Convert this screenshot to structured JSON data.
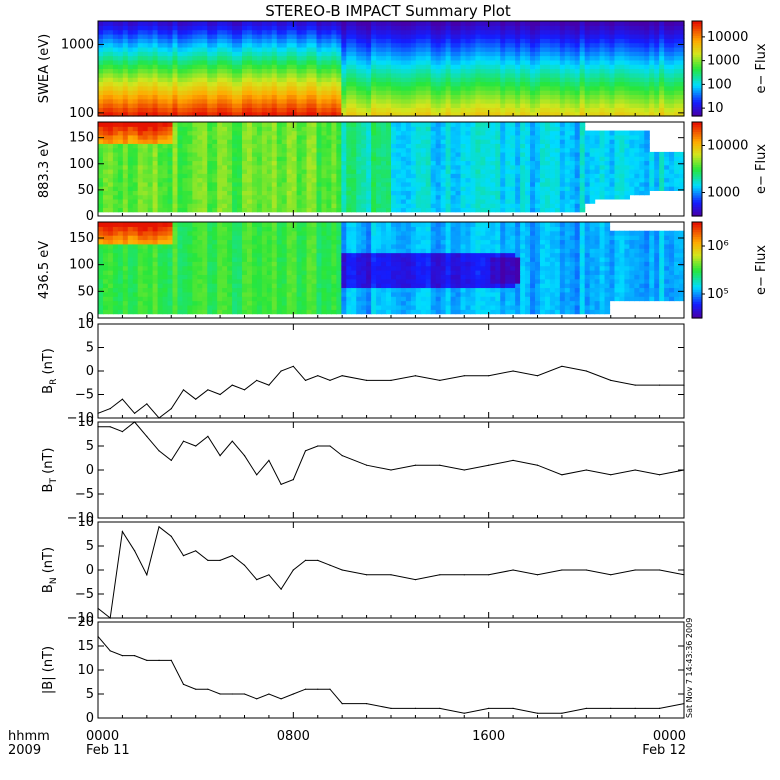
{
  "title": "STEREO-B IMPACT Summary Plot",
  "footer": {
    "left_top": "hhmm",
    "left_bottom": "2009",
    "timestamp": "Sat Nov 7 14:43:36 2009"
  },
  "chart_data": [
    {
      "type": "heatmap",
      "ylabel": "SWEA (eV)",
      "scale": "log",
      "yticks": [
        "100",
        "1000"
      ],
      "colorbar": {
        "label": "e− Flux",
        "ticks": [
          "10",
          "100",
          "1000",
          "10000"
        ]
      }
    },
    {
      "type": "heatmap",
      "ylabel": "883.3 eV",
      "ylim": [
        0,
        180
      ],
      "yticks": [
        "0",
        "50",
        "100",
        "150"
      ],
      "colorbar": {
        "label": "e− Flux",
        "ticks": [
          "1000",
          "10000"
        ]
      }
    },
    {
      "type": "heatmap",
      "ylabel": "436.5 eV",
      "ylim": [
        0,
        180
      ],
      "yticks": [
        "0",
        "50",
        "100",
        "150"
      ],
      "colorbar": {
        "label": "e− Flux",
        "ticks": [
          "10⁵",
          "10⁶"
        ]
      }
    },
    {
      "type": "line",
      "ylabel_main": "B",
      "ylabel_sub": "R",
      "ylabel_unit": " (nT)",
      "ylim": [
        -10,
        10
      ],
      "yticks": [
        "−10",
        "−5",
        "0",
        "5",
        "10"
      ],
      "x": [
        0,
        0.5,
        1,
        1.5,
        2,
        2.5,
        3,
        3.5,
        4,
        4.5,
        5,
        5.5,
        6,
        6.5,
        7,
        7.5,
        8,
        8.5,
        9,
        9.5,
        10,
        11,
        12,
        13,
        14,
        15,
        16,
        17,
        18,
        19,
        20,
        21,
        22,
        23,
        24
      ],
      "y": [
        -9,
        -8,
        -6,
        -9,
        -7,
        -10,
        -8,
        -4,
        -6,
        -4,
        -5,
        -3,
        -4,
        -2,
        -3,
        0,
        1,
        -2,
        -1,
        -2,
        -1,
        -2,
        -2,
        -1,
        -2,
        -1,
        -1,
        0,
        -1,
        1,
        0,
        -2,
        -3,
        -3,
        -3
      ]
    },
    {
      "type": "line",
      "ylabel_main": "B",
      "ylabel_sub": "T",
      "ylabel_unit": " (nT)",
      "ylim": [
        -10,
        10
      ],
      "yticks": [
        "−10",
        "−5",
        "0",
        "5",
        "10"
      ],
      "x": [
        0,
        0.5,
        1,
        1.5,
        2,
        2.5,
        3,
        3.5,
        4,
        4.5,
        5,
        5.5,
        6,
        6.5,
        7,
        7.5,
        8,
        8.5,
        9,
        9.5,
        10,
        11,
        12,
        13,
        14,
        15,
        16,
        17,
        18,
        19,
        20,
        21,
        22,
        23,
        24
      ],
      "y": [
        9,
        9,
        8,
        10,
        7,
        4,
        2,
        6,
        5,
        7,
        3,
        6,
        3,
        -1,
        2,
        -3,
        -2,
        4,
        5,
        5,
        3,
        1,
        0,
        1,
        1,
        0,
        1,
        2,
        1,
        -1,
        0,
        -1,
        0,
        -1,
        0
      ]
    },
    {
      "type": "line",
      "ylabel_main": "B",
      "ylabel_sub": "N",
      "ylabel_unit": " (nT)",
      "ylim": [
        -10,
        10
      ],
      "yticks": [
        "−10",
        "−5",
        "0",
        "5",
        "10"
      ],
      "x": [
        0,
        0.5,
        1,
        1.5,
        2,
        2.5,
        3,
        3.5,
        4,
        4.5,
        5,
        5.5,
        6,
        6.5,
        7,
        7.5,
        8,
        8.5,
        9,
        9.5,
        10,
        11,
        12,
        13,
        14,
        15,
        16,
        17,
        18,
        19,
        20,
        21,
        22,
        23,
        24
      ],
      "y": [
        -8,
        -10,
        8,
        4,
        -1,
        9,
        7,
        3,
        4,
        2,
        2,
        3,
        1,
        -2,
        -1,
        -4,
        0,
        2,
        2,
        1,
        0,
        -1,
        -1,
        -2,
        -1,
        -1,
        -1,
        0,
        -1,
        0,
        0,
        -1,
        0,
        0,
        -1
      ]
    },
    {
      "type": "line",
      "ylabel_main": "|B|",
      "ylabel_sub": "",
      "ylabel_unit": " (nT)",
      "ylim": [
        0,
        20
      ],
      "yticks": [
        "0",
        "5",
        "10",
        "15",
        "20"
      ],
      "x": [
        0,
        0.5,
        1,
        1.5,
        2,
        2.5,
        3,
        3.5,
        4,
        4.5,
        5,
        5.5,
        6,
        6.5,
        7,
        7.5,
        8,
        8.5,
        9,
        9.5,
        10,
        11,
        12,
        13,
        14,
        15,
        16,
        17,
        18,
        19,
        20,
        21,
        22,
        23,
        24
      ],
      "y": [
        17,
        14,
        13,
        13,
        12,
        12,
        12,
        7,
        6,
        6,
        5,
        5,
        5,
        4,
        5,
        4,
        5,
        6,
        6,
        6,
        3,
        3,
        2,
        2,
        2,
        1,
        2,
        2,
        1,
        1,
        2,
        2,
        2,
        2,
        3
      ]
    }
  ],
  "xaxis": {
    "ticks": [
      {
        "hour": 0,
        "top": "0000",
        "bottom": "Feb 11"
      },
      {
        "hour": 8,
        "top": "0800",
        "bottom": ""
      },
      {
        "hour": 16,
        "top": "1600",
        "bottom": ""
      },
      {
        "hour": 24,
        "top": "0000",
        "bottom": "Feb 12"
      }
    ],
    "range_hours": [
      0,
      24
    ]
  }
}
